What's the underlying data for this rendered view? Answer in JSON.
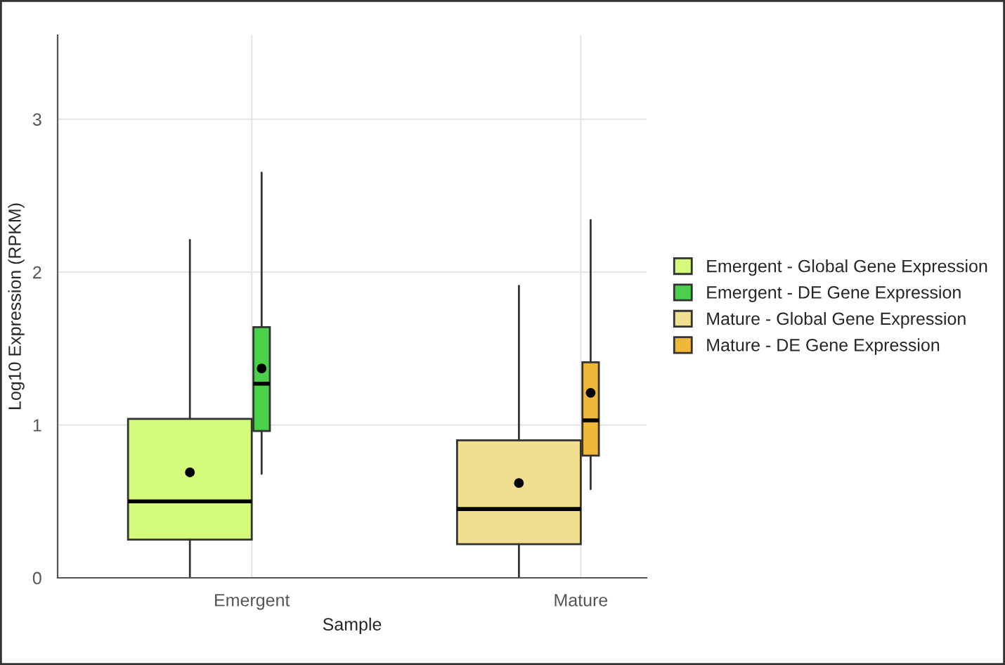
{
  "chart_data": {
    "type": "box",
    "xlabel": "Sample",
    "ylabel": "Log10 Expression (RPKM)",
    "categories": [
      "Emergent",
      "Mature"
    ],
    "ylim": [
      0,
      3.55
    ],
    "yticks": [
      0,
      1,
      2,
      3
    ],
    "grid": true,
    "legend": "right",
    "series": [
      {
        "name": "Emergent - Global Gene Expression",
        "color": "#d4fb7c",
        "boxes": [
          {
            "low": 0,
            "q1": 0.25,
            "median": 0.5,
            "q3": 1.04,
            "high": 2.21,
            "mean": 0.69
          },
          null
        ]
      },
      {
        "name": "Emergent - DE Gene Expression",
        "color": "#4bd04b",
        "boxes": [
          {
            "low": 0.68,
            "q1": 0.96,
            "median": 1.27,
            "q3": 1.64,
            "high": 2.65,
            "mean": 1.37
          },
          null
        ]
      },
      {
        "name": "Mature - Global Gene Expression",
        "color": "#f0df90",
        "boxes": [
          null,
          {
            "low": 0,
            "q1": 0.22,
            "median": 0.45,
            "q3": 0.9,
            "high": 1.91,
            "mean": 0.62
          }
        ]
      },
      {
        "name": "Mature - DE Gene Expression",
        "color": "#f0b838",
        "boxes": [
          null,
          {
            "low": 0.58,
            "q1": 0.8,
            "median": 1.03,
            "q3": 1.41,
            "high": 2.34,
            "mean": 1.21
          }
        ]
      }
    ]
  }
}
